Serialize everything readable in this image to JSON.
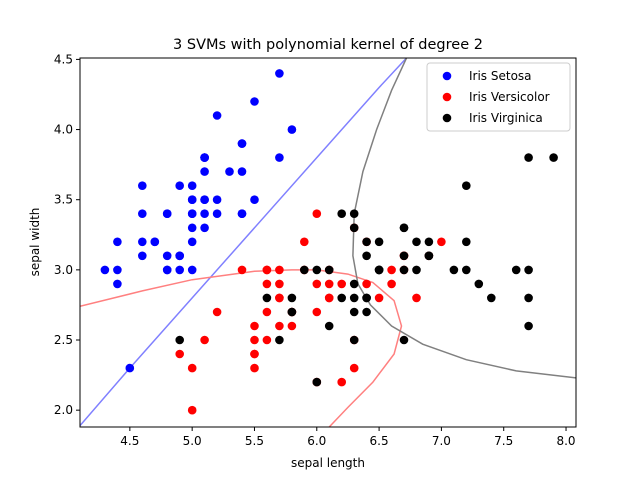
{
  "chart_data": {
    "type": "scatter",
    "title": "3 SVMs with polynomial kernel of degree 2",
    "xlabel": "sepal length",
    "ylabel": "sepal width",
    "xlim": [
      4.1,
      8.08
    ],
    "ylim": [
      1.88,
      4.51
    ],
    "xticks": [
      "4.5",
      "5.0",
      "5.5",
      "6.0",
      "6.5",
      "7.0",
      "7.5",
      "8.0"
    ],
    "yticks": [
      "2.0",
      "2.5",
      "3.0",
      "3.5",
      "4.0",
      "4.5"
    ],
    "grid": false,
    "legend_position": "top-right",
    "series": [
      {
        "name": "Iris Setosa",
        "color": "#0000ff",
        "points": [
          [
            5.1,
            3.5
          ],
          [
            4.9,
            3.0
          ],
          [
            4.7,
            3.2
          ],
          [
            4.6,
            3.1
          ],
          [
            5.0,
            3.6
          ],
          [
            5.4,
            3.9
          ],
          [
            4.6,
            3.4
          ],
          [
            5.0,
            3.4
          ],
          [
            4.4,
            2.9
          ],
          [
            4.9,
            3.1
          ],
          [
            5.4,
            3.7
          ],
          [
            4.8,
            3.4
          ],
          [
            4.8,
            3.0
          ],
          [
            4.3,
            3.0
          ],
          [
            5.8,
            4.0
          ],
          [
            5.7,
            4.4
          ],
          [
            5.4,
            3.9
          ],
          [
            5.1,
            3.5
          ],
          [
            5.7,
            3.8
          ],
          [
            5.1,
            3.8
          ],
          [
            5.4,
            3.4
          ],
          [
            5.1,
            3.7
          ],
          [
            4.6,
            3.6
          ],
          [
            5.1,
            3.3
          ],
          [
            4.8,
            3.4
          ],
          [
            5.0,
            3.0
          ],
          [
            5.0,
            3.4
          ],
          [
            5.2,
            3.5
          ],
          [
            5.2,
            3.4
          ],
          [
            4.7,
            3.2
          ],
          [
            4.8,
            3.1
          ],
          [
            5.4,
            3.4
          ],
          [
            5.2,
            4.1
          ],
          [
            5.5,
            4.2
          ],
          [
            4.9,
            3.1
          ],
          [
            5.0,
            3.2
          ],
          [
            5.5,
            3.5
          ],
          [
            4.9,
            3.6
          ],
          [
            4.4,
            3.0
          ],
          [
            5.1,
            3.4
          ],
          [
            5.0,
            3.5
          ],
          [
            4.5,
            2.3
          ],
          [
            4.4,
            3.2
          ],
          [
            5.0,
            3.5
          ],
          [
            5.1,
            3.8
          ],
          [
            4.8,
            3.0
          ],
          [
            5.1,
            3.8
          ],
          [
            4.6,
            3.2
          ],
          [
            5.3,
            3.7
          ],
          [
            5.0,
            3.3
          ]
        ]
      },
      {
        "name": "Iris Versicolor",
        "color": "#ff0000",
        "points": [
          [
            7.0,
            3.2
          ],
          [
            6.4,
            3.2
          ],
          [
            6.9,
            3.1
          ],
          [
            5.5,
            2.3
          ],
          [
            6.5,
            2.8
          ],
          [
            5.7,
            2.8
          ],
          [
            6.3,
            3.3
          ],
          [
            4.9,
            2.4
          ],
          [
            6.6,
            2.9
          ],
          [
            5.2,
            2.7
          ],
          [
            5.0,
            2.0
          ],
          [
            5.9,
            3.0
          ],
          [
            6.0,
            2.2
          ],
          [
            6.1,
            2.9
          ],
          [
            5.6,
            2.9
          ],
          [
            6.7,
            3.1
          ],
          [
            5.6,
            3.0
          ],
          [
            5.8,
            2.7
          ],
          [
            6.2,
            2.2
          ],
          [
            5.6,
            2.5
          ],
          [
            5.9,
            3.2
          ],
          [
            6.1,
            2.8
          ],
          [
            6.3,
            2.5
          ],
          [
            6.1,
            2.8
          ],
          [
            6.4,
            2.9
          ],
          [
            6.6,
            3.0
          ],
          [
            6.8,
            2.8
          ],
          [
            6.7,
            3.0
          ],
          [
            6.0,
            2.9
          ],
          [
            5.7,
            2.6
          ],
          [
            5.5,
            2.4
          ],
          [
            5.5,
            2.4
          ],
          [
            5.8,
            2.7
          ],
          [
            6.0,
            2.7
          ],
          [
            5.4,
            3.0
          ],
          [
            6.0,
            3.4
          ],
          [
            6.7,
            3.1
          ],
          [
            6.3,
            2.3
          ],
          [
            5.6,
            3.0
          ],
          [
            5.5,
            2.5
          ],
          [
            5.5,
            2.6
          ],
          [
            6.1,
            3.0
          ],
          [
            5.8,
            2.6
          ],
          [
            5.0,
            2.3
          ],
          [
            5.6,
            2.7
          ],
          [
            5.7,
            3.0
          ],
          [
            5.7,
            2.9
          ],
          [
            6.2,
            2.9
          ],
          [
            5.1,
            2.5
          ],
          [
            5.7,
            2.8
          ]
        ]
      },
      {
        "name": "Iris Virginica",
        "color": "#000000",
        "points": [
          [
            6.3,
            3.3
          ],
          [
            5.8,
            2.7
          ],
          [
            7.1,
            3.0
          ],
          [
            6.3,
            2.9
          ],
          [
            6.5,
            3.0
          ],
          [
            7.6,
            3.0
          ],
          [
            4.9,
            2.5
          ],
          [
            7.3,
            2.9
          ],
          [
            6.7,
            2.5
          ],
          [
            7.2,
            3.6
          ],
          [
            6.5,
            3.2
          ],
          [
            6.4,
            2.7
          ],
          [
            6.8,
            3.0
          ],
          [
            5.7,
            2.5
          ],
          [
            5.8,
            2.8
          ],
          [
            6.4,
            3.2
          ],
          [
            6.5,
            3.0
          ],
          [
            7.7,
            3.8
          ],
          [
            7.7,
            2.6
          ],
          [
            6.0,
            2.2
          ],
          [
            6.9,
            3.2
          ],
          [
            5.6,
            2.8
          ],
          [
            7.7,
            2.8
          ],
          [
            6.3,
            2.7
          ],
          [
            6.7,
            3.3
          ],
          [
            7.2,
            3.2
          ],
          [
            6.2,
            2.8
          ],
          [
            6.1,
            3.0
          ],
          [
            6.4,
            2.8
          ],
          [
            7.2,
            3.0
          ],
          [
            7.4,
            2.8
          ],
          [
            7.9,
            3.8
          ],
          [
            6.4,
            2.8
          ],
          [
            6.3,
            2.8
          ],
          [
            6.1,
            2.6
          ],
          [
            7.7,
            3.0
          ],
          [
            6.3,
            3.4
          ],
          [
            6.4,
            3.1
          ],
          [
            6.0,
            3.0
          ],
          [
            6.9,
            3.1
          ],
          [
            6.7,
            3.1
          ],
          [
            6.9,
            3.1
          ],
          [
            5.8,
            2.7
          ],
          [
            6.8,
            3.2
          ],
          [
            6.7,
            3.3
          ],
          [
            6.7,
            3.0
          ],
          [
            6.3,
            2.5
          ],
          [
            6.5,
            3.0
          ],
          [
            6.2,
            3.4
          ],
          [
            5.9,
            3.0
          ]
        ]
      }
    ],
    "decision_boundaries": [
      {
        "color": "#8080ff",
        "points": [
          [
            4.1,
            1.89
          ],
          [
            4.5,
            2.3
          ],
          [
            5.0,
            2.8
          ],
          [
            5.5,
            3.3
          ],
          [
            6.0,
            3.8
          ],
          [
            6.5,
            4.3
          ],
          [
            6.72,
            4.51
          ]
        ]
      },
      {
        "color": "#ff8080",
        "points": [
          [
            4.1,
            2.74
          ],
          [
            4.6,
            2.85
          ],
          [
            5.0,
            2.93
          ],
          [
            5.5,
            2.99
          ],
          [
            5.8,
            3.0
          ],
          [
            6.0,
            3.0
          ],
          [
            6.25,
            2.97
          ],
          [
            6.45,
            2.91
          ],
          [
            6.62,
            2.78
          ],
          [
            6.68,
            2.6
          ],
          [
            6.62,
            2.4
          ],
          [
            6.45,
            2.2
          ],
          [
            6.25,
            2.02
          ],
          [
            6.1,
            1.88
          ]
        ]
      },
      {
        "color": "#808080",
        "points": [
          [
            6.72,
            4.51
          ],
          [
            6.6,
            4.28
          ],
          [
            6.48,
            4.0
          ],
          [
            6.37,
            3.7
          ],
          [
            6.3,
            3.4
          ],
          [
            6.29,
            3.1
          ],
          [
            6.33,
            2.9
          ],
          [
            6.43,
            2.75
          ],
          [
            6.6,
            2.6
          ],
          [
            6.85,
            2.47
          ],
          [
            7.2,
            2.36
          ],
          [
            7.6,
            2.28
          ],
          [
            8.08,
            2.23
          ]
        ]
      }
    ]
  }
}
